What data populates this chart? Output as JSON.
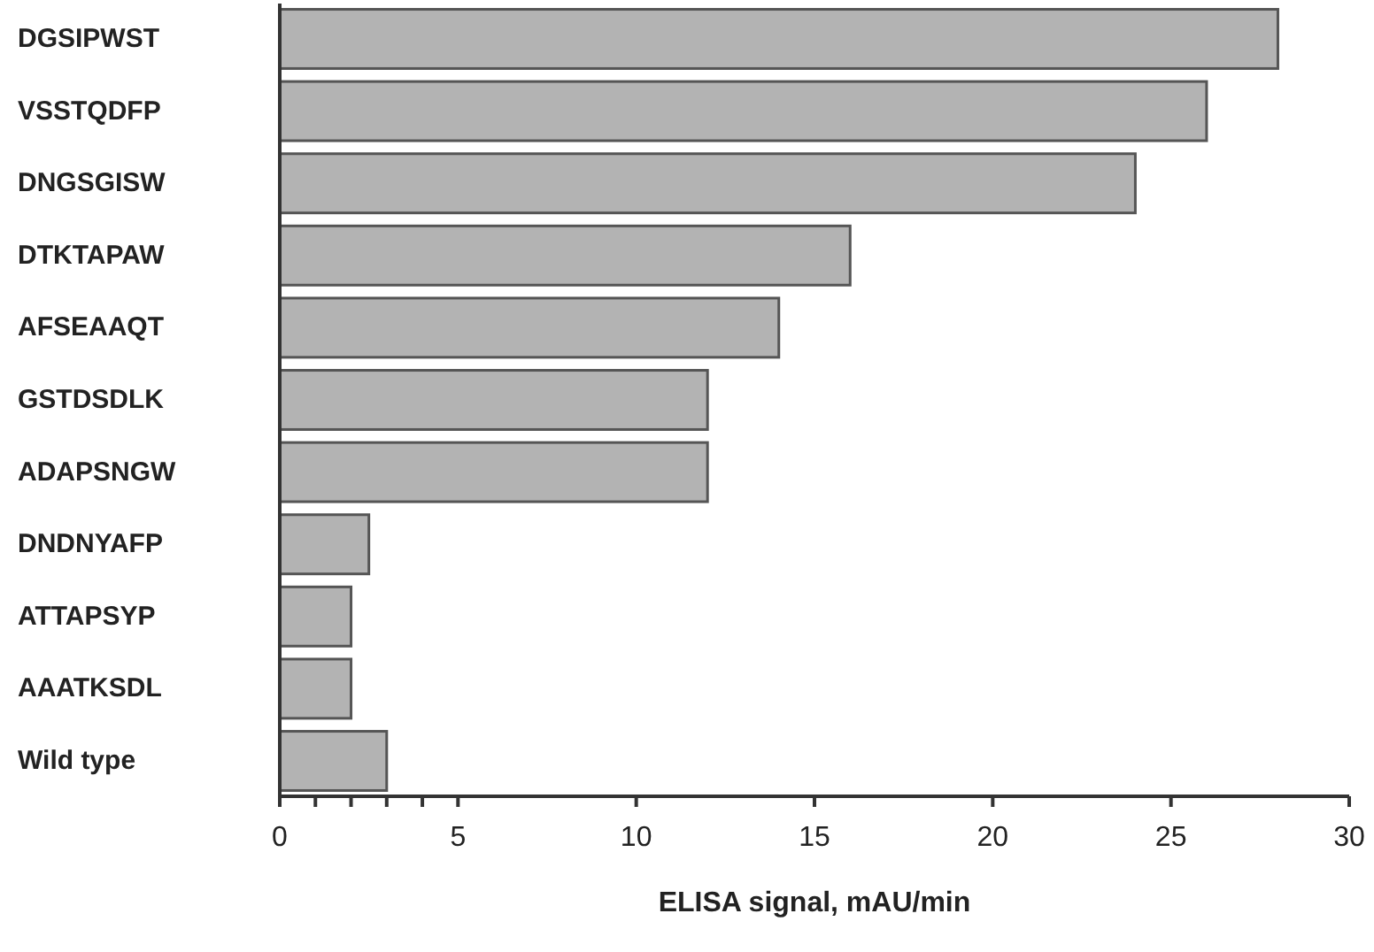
{
  "chart_data": {
    "type": "bar",
    "orientation": "horizontal",
    "xlabel": "ELISA signal, mAU/min",
    "categories": [
      "DGSIPWST",
      "VSSTQDFP",
      "DNGSGISW",
      "DTKTAPAW",
      "AFSEAAQT",
      "GSTDSDLK",
      "ADAPSNGW",
      "DNDNYAFP",
      "ATTAPSYP",
      "AAATKSDL",
      "Wild type"
    ],
    "values": [
      28,
      26,
      24,
      16,
      14,
      12,
      12,
      2.5,
      2,
      2,
      3
    ],
    "color": "#b3b3b3",
    "xlim": [
      0,
      30
    ],
    "xticks": [
      0,
      {
        "value": 1,
        "label": null
      },
      {
        "value": 2,
        "label": null
      },
      {
        "value": 3,
        "label": null
      },
      {
        "value": 4,
        "label": null
      },
      5,
      10,
      15,
      20,
      25,
      30
    ],
    "grid": false
  }
}
